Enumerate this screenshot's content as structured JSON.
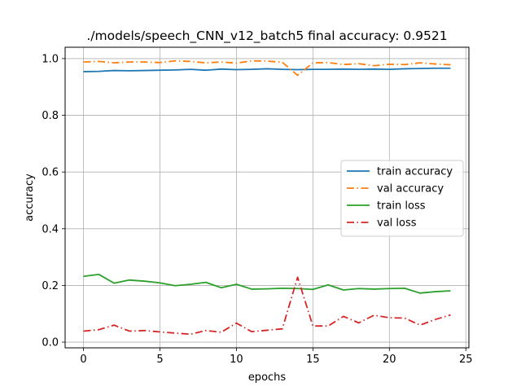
{
  "chart_data": {
    "type": "line",
    "title": "./models/speech_CNN_v12_batch5 final accuracy: 0.9521",
    "xlabel": "epochs",
    "ylabel": "accuracy",
    "xlim": [
      -1.2,
      25.2
    ],
    "ylim": [
      -0.02,
      1.04
    ],
    "xticks": [
      0,
      5,
      10,
      15,
      20,
      25
    ],
    "xtick_labels": [
      "0",
      "5",
      "10",
      "15",
      "20",
      "25"
    ],
    "yticks": [
      0.0,
      0.2,
      0.4,
      0.6,
      0.8,
      1.0
    ],
    "ytick_labels": [
      "0.0",
      "0.2",
      "0.4",
      "0.6",
      "0.8",
      "1.0"
    ],
    "grid": true,
    "legend_position": "center-right",
    "x": [
      0,
      1,
      2,
      3,
      4,
      5,
      6,
      7,
      8,
      9,
      10,
      11,
      12,
      13,
      14,
      15,
      16,
      17,
      18,
      19,
      20,
      21,
      22,
      23,
      24
    ],
    "series": [
      {
        "name": "train accuracy",
        "color": "#1f77b4",
        "linestyle": "solid",
        "values": [
          0.954,
          0.955,
          0.958,
          0.957,
          0.958,
          0.959,
          0.96,
          0.962,
          0.959,
          0.963,
          0.961,
          0.962,
          0.964,
          0.962,
          0.961,
          0.962,
          0.962,
          0.963,
          0.962,
          0.963,
          0.962,
          0.964,
          0.965,
          0.966,
          0.966
        ]
      },
      {
        "name": "val accuracy",
        "color": "#ff7f0e",
        "linestyle": "dashdot",
        "values": [
          0.988,
          0.99,
          0.985,
          0.988,
          0.988,
          0.986,
          0.992,
          0.99,
          0.985,
          0.988,
          0.984,
          0.992,
          0.991,
          0.987,
          0.941,
          0.985,
          0.986,
          0.979,
          0.982,
          0.975,
          0.98,
          0.979,
          0.985,
          0.981,
          0.978
        ]
      },
      {
        "name": "train loss",
        "color": "#2ca02c",
        "linestyle": "solid",
        "values": [
          0.232,
          0.239,
          0.208,
          0.219,
          0.215,
          0.209,
          0.199,
          0.204,
          0.211,
          0.192,
          0.204,
          0.187,
          0.188,
          0.19,
          0.189,
          0.186,
          0.202,
          0.184,
          0.189,
          0.187,
          0.189,
          0.19,
          0.173,
          0.178,
          0.181
        ]
      },
      {
        "name": "val loss",
        "color": "#d62728",
        "linestyle": "dashdot",
        "values": [
          0.039,
          0.044,
          0.06,
          0.039,
          0.041,
          0.036,
          0.032,
          0.028,
          0.041,
          0.035,
          0.067,
          0.037,
          0.042,
          0.047,
          0.229,
          0.057,
          0.057,
          0.091,
          0.068,
          0.095,
          0.086,
          0.085,
          0.06,
          0.08,
          0.096
        ]
      }
    ]
  }
}
